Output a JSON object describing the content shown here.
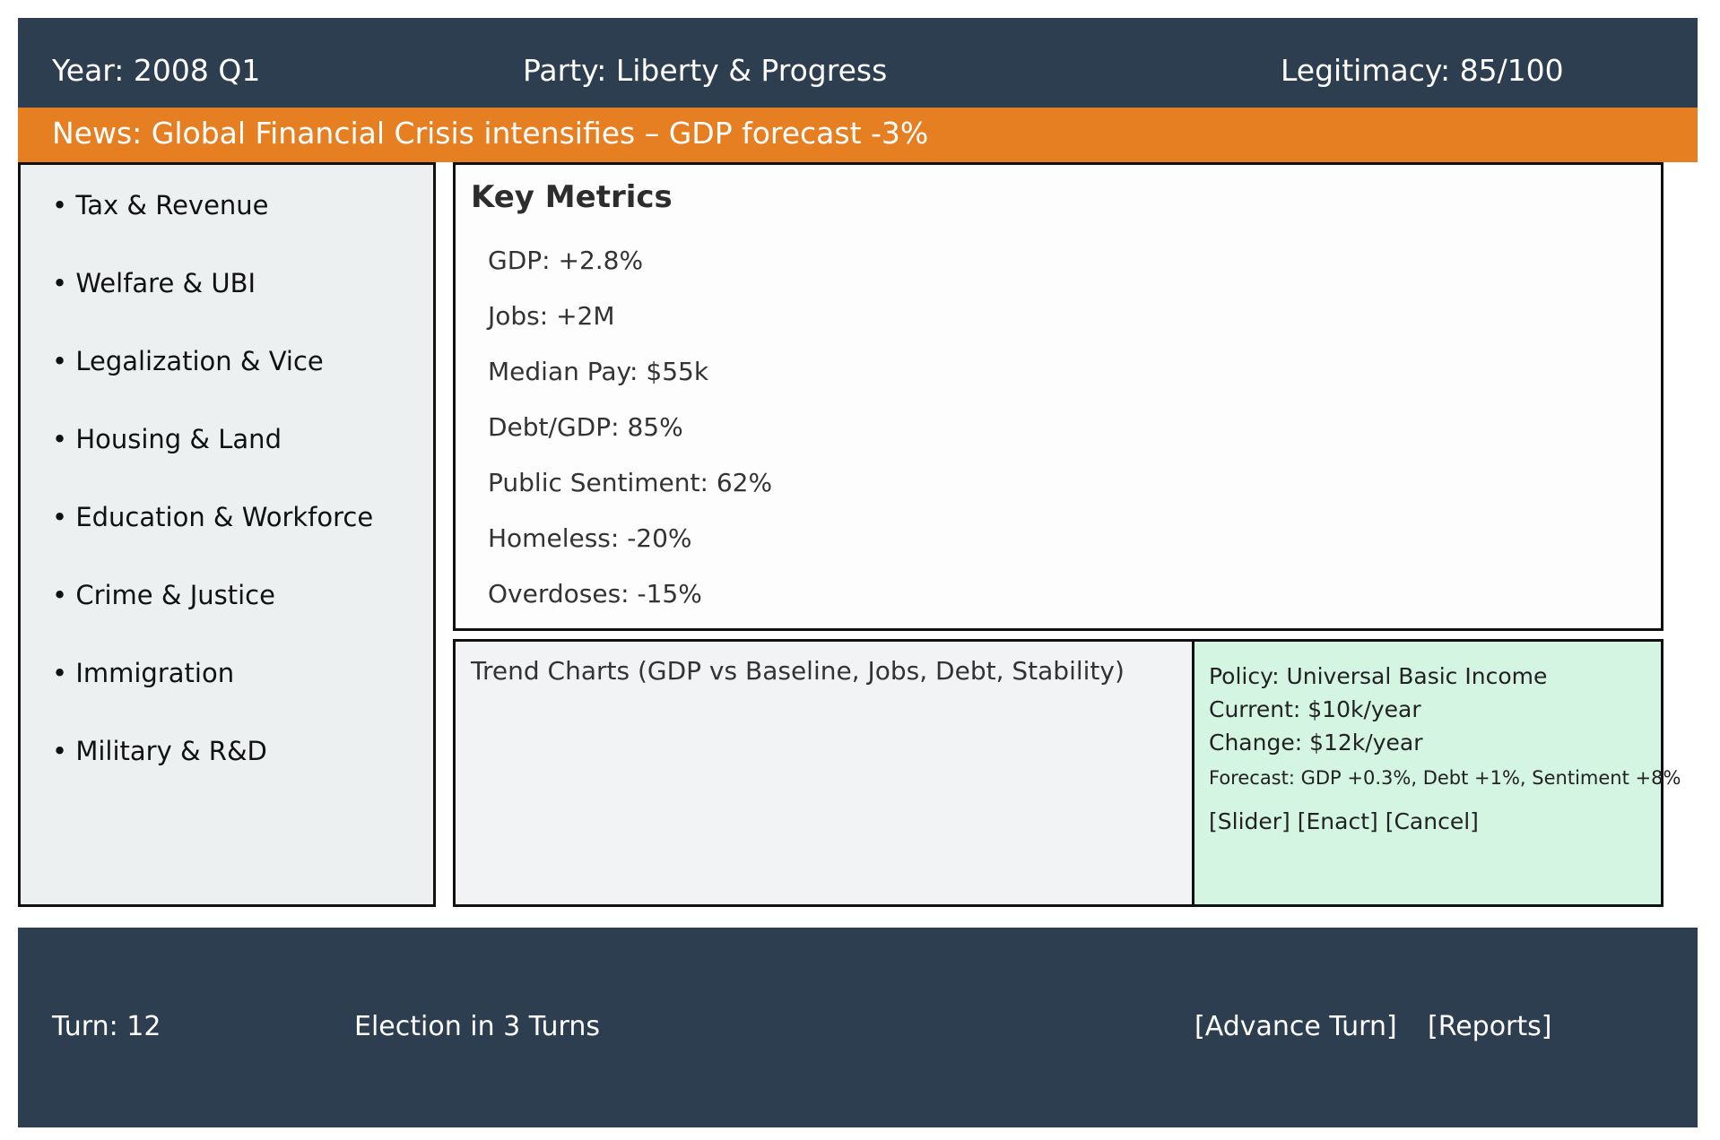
{
  "header": {
    "year": "Year: 2008 Q1",
    "party": "Party: Liberty & Progress",
    "legitimacy": "Legitimacy: 85/100"
  },
  "news": {
    "text": "News: Global Financial Crisis intensifies – GDP forecast -3%"
  },
  "sidebar": {
    "items": [
      {
        "label": "• Tax & Revenue"
      },
      {
        "label": "• Welfare & UBI"
      },
      {
        "label": "• Legalization & Vice"
      },
      {
        "label": "• Housing & Land"
      },
      {
        "label": "• Education & Workforce"
      },
      {
        "label": "• Crime & Justice"
      },
      {
        "label": "• Immigration"
      },
      {
        "label": "• Military & R&D"
      }
    ]
  },
  "metrics": {
    "title": "Key Metrics",
    "items": [
      {
        "label": "GDP: +2.8%"
      },
      {
        "label": "Jobs: +2M"
      },
      {
        "label": "Median Pay: $55k"
      },
      {
        "label": "Debt/GDP: 85%"
      },
      {
        "label": "Public Sentiment: 62%"
      },
      {
        "label": "Homeless: -20%"
      },
      {
        "label": "Overdoses: -15%"
      }
    ]
  },
  "trend": {
    "title": "Trend Charts (GDP vs Baseline, Jobs, Debt, Stability)"
  },
  "policy": {
    "name": "Policy: Universal Basic Income",
    "current": "Current: $10k/year",
    "change": "Change: $12k/year",
    "forecast": "Forecast: GDP +0.3%, Debt +1%, Sentiment +8%",
    "slider_label": "[Slider]",
    "enact_label": "[Enact]",
    "cancel_label": "[Cancel]"
  },
  "footer": {
    "turn": "Turn: 12",
    "election": "Election in 3 Turns",
    "advance_label": "[Advance Turn]",
    "reports_label": "[Reports]"
  },
  "colors": {
    "header_bg": "#2d3e50",
    "news_bg": "#e67e22",
    "sidebar_bg": "#ecf0f1",
    "policy_bg": "#d5f5e3"
  }
}
